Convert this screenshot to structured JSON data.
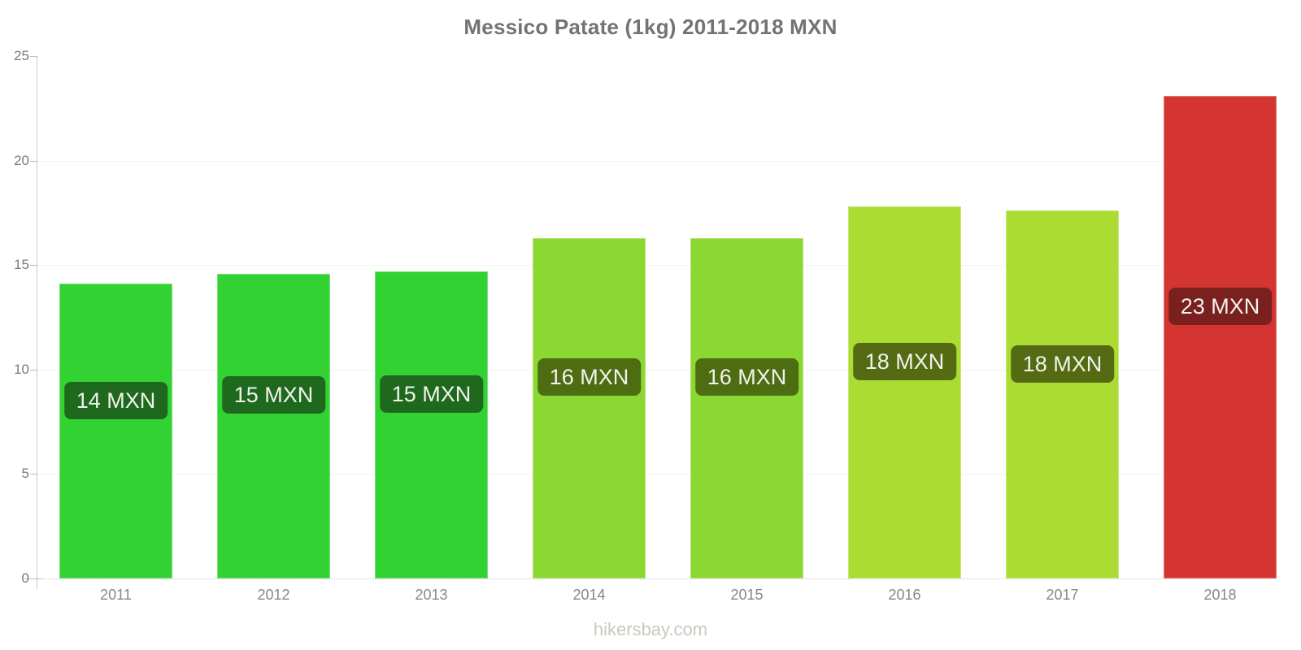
{
  "title": "Messico Patate (1kg) 2011-2018 MXN",
  "footer": "hikersbay.com",
  "chart_data": {
    "type": "bar",
    "title": "Messico Patate (1kg) 2011-2018 MXN",
    "categories": [
      "2011",
      "2012",
      "2013",
      "2014",
      "2015",
      "2016",
      "2017",
      "2018"
    ],
    "values": [
      14.1,
      14.6,
      14.7,
      16.3,
      16.3,
      17.8,
      17.6,
      23.1
    ],
    "bar_labels": [
      "14 MXN",
      "15 MXN",
      "15 MXN",
      "16 MXN",
      "16 MXN",
      "18 MXN",
      "18 MXN",
      "23 MXN"
    ],
    "bar_colors": [
      "#32d232",
      "#32d232",
      "#32d232",
      "#8cd832",
      "#8cd832",
      "#aadc33",
      "#aadc33",
      "#d43531"
    ],
    "label_bg_colors": [
      "#1e691e",
      "#1e691e",
      "#1e691e",
      "#4e6c12",
      "#4e6c12",
      "#556b13",
      "#556b13",
      "#7a211f"
    ],
    "label_text_color": "#f2f2ec",
    "xlabel": "",
    "ylabel": "",
    "ylim": [
      0,
      25
    ],
    "yticks": [
      0,
      5,
      10,
      15,
      20,
      25
    ],
    "gridlines_at": [
      5,
      10,
      15,
      20
    ],
    "grid": "horizontal-faint",
    "legend": "none"
  }
}
